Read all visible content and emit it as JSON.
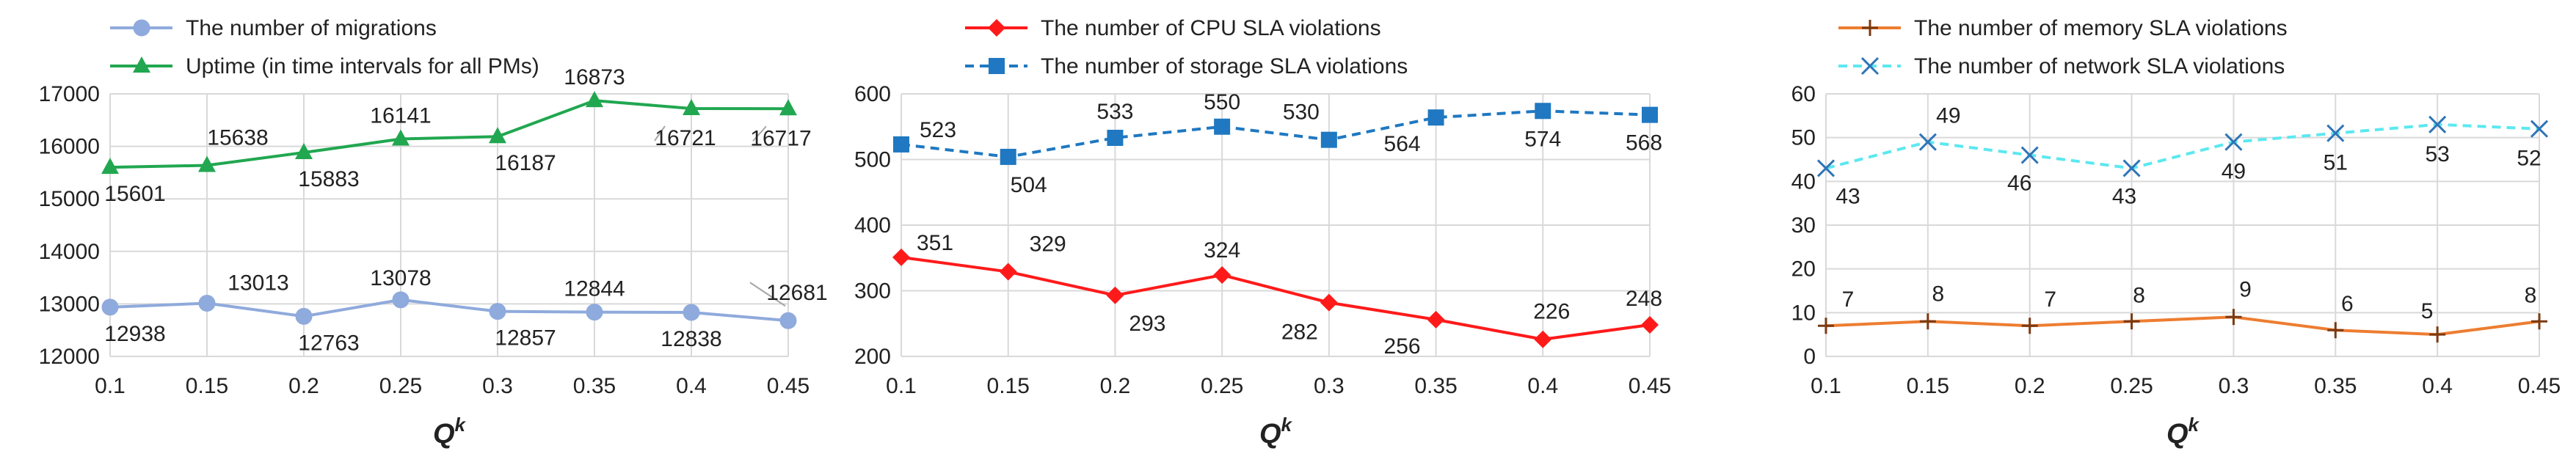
{
  "chart_data": [
    {
      "type": "line",
      "title": "",
      "xlabel": "Q",
      "xlabel_superscript": "k",
      "ylabel": "",
      "categories": [
        "0.1",
        "0.15",
        "0.2",
        "0.25",
        "0.3",
        "0.35",
        "0.4",
        "0.45"
      ],
      "ylim": [
        12000,
        17000
      ],
      "yticks": [
        "12000",
        "13000",
        "14000",
        "15000",
        "16000",
        "17000"
      ],
      "grid": true,
      "legend_position": "top",
      "series": [
        {
          "name": "The number of migrations",
          "color": "#8faadc",
          "marker": "circle",
          "dashed": false,
          "values": [
            12938,
            13013,
            12763,
            13078,
            12857,
            12844,
            12838,
            12681
          ],
          "labels": [
            "12938",
            "13013",
            "12763",
            "13078",
            "12857",
            "12844",
            "12838",
            "12681"
          ]
        },
        {
          "name": "Uptime (in time intervals for all PMs)",
          "color": "#21a750",
          "marker": "triangle",
          "dashed": false,
          "values": [
            15601,
            15638,
            15883,
            16141,
            16187,
            16873,
            16721,
            16717
          ],
          "labels": [
            "15601",
            "15638",
            "15883",
            "16141",
            "16187",
            "16873",
            "16721",
            "16717"
          ]
        }
      ]
    },
    {
      "type": "line",
      "title": "",
      "xlabel": "Q",
      "xlabel_superscript": "k",
      "ylabel": "",
      "categories": [
        "0.1",
        "0.15",
        "0.2",
        "0.25",
        "0.3",
        "0.35",
        "0.4",
        "0.45"
      ],
      "ylim": [
        200,
        600
      ],
      "yticks": [
        "200",
        "300",
        "400",
        "500",
        "600"
      ],
      "grid": true,
      "legend_position": "top",
      "series": [
        {
          "name": "The number of CPU SLA violations",
          "color": "#ff1a1a",
          "marker": "diamond",
          "dashed": false,
          "values": [
            351,
            329,
            293,
            324,
            282,
            256,
            226,
            248
          ],
          "labels": [
            "351",
            "329",
            "293",
            "324",
            "282",
            "256",
            "226",
            "248"
          ]
        },
        {
          "name": "The number of storage SLA violations",
          "color": "#1f78c1",
          "marker": "square",
          "dashed": true,
          "values": [
            523,
            504,
            533,
            550,
            530,
            564,
            574,
            568
          ],
          "labels": [
            "523",
            "504",
            "533",
            "550",
            "530",
            "564",
            "574",
            "568"
          ]
        }
      ]
    },
    {
      "type": "line",
      "title": "",
      "xlabel": "Q",
      "xlabel_superscript": "k",
      "ylabel": "",
      "categories": [
        "0.1",
        "0.15",
        "0.2",
        "0.25",
        "0.3",
        "0.35",
        "0.4",
        "0.45"
      ],
      "ylim": [
        0,
        60
      ],
      "yticks": [
        "0",
        "10",
        "20",
        "30",
        "40",
        "50",
        "60"
      ],
      "grid": true,
      "legend_position": "top",
      "series": [
        {
          "name": "The number of memory SLA violations",
          "color": "#ed7d31",
          "marker": "plus",
          "dashed": false,
          "values": [
            7,
            8,
            7,
            8,
            9,
            6,
            5,
            8
          ],
          "labels": [
            "7",
            "8",
            "7",
            "8",
            "9",
            "6",
            "5",
            "8"
          ]
        },
        {
          "name": "The number of network SLA violations",
          "color": "#5ce8f0",
          "marker": "x",
          "dashed": true,
          "values": [
            43,
            49,
            46,
            43,
            49,
            51,
            53,
            52
          ],
          "labels": [
            "43",
            "49",
            "46",
            "43",
            "49",
            "51",
            "53",
            "52"
          ]
        }
      ]
    }
  ]
}
